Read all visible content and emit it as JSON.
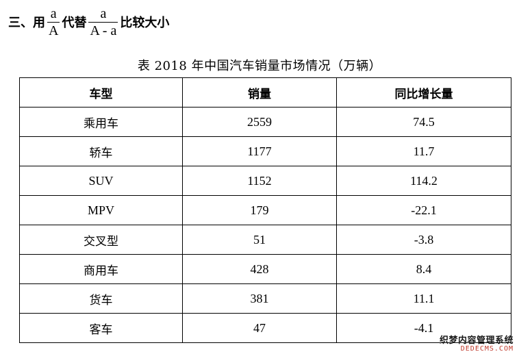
{
  "heading": {
    "prefix": "三、用",
    "fraction1": {
      "numerator": "a",
      "denominator": "A"
    },
    "middle": "代替",
    "fraction2": {
      "numerator": "a",
      "denominator": "A - a"
    },
    "suffix": "比较大小"
  },
  "caption": "表  2018 年中国汽车销量市场情况（万辆）",
  "table": {
    "headers": [
      "车型",
      "销量",
      "同比增长量"
    ],
    "rows": [
      [
        "乘用车",
        "2559",
        "74.5"
      ],
      [
        "轿车",
        "1177",
        "11.7"
      ],
      [
        "SUV",
        "1152",
        "114.2"
      ],
      [
        "MPV",
        "179",
        "-22.1"
      ],
      [
        "交叉型",
        "51",
        "-3.8"
      ],
      [
        "商用车",
        "428",
        "8.4"
      ],
      [
        "货车",
        "381",
        "11.1"
      ],
      [
        "客车",
        "47",
        "-4.1"
      ]
    ]
  },
  "watermark": {
    "line1": "织梦内容管理系统",
    "line2": "DEDECMS.COM"
  }
}
